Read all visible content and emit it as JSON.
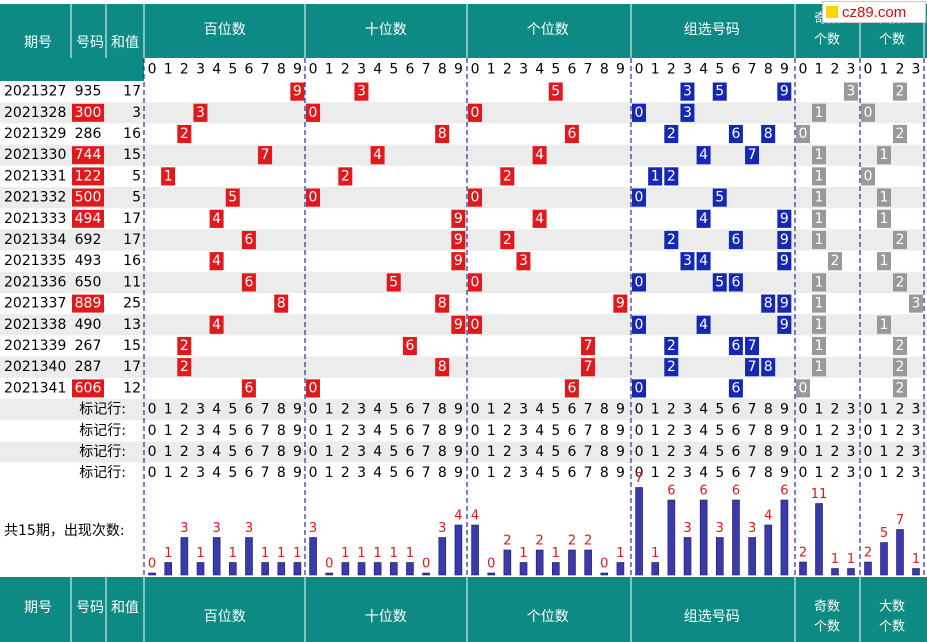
{
  "header": {
    "issue_label": "期号",
    "number_label": "号码",
    "sum_label": "和值",
    "sections": [
      "百位数",
      "十位数",
      "个位数",
      "组选号码",
      "奇数个数",
      "大数个数"
    ],
    "odd_label_line1": "奇数",
    "odd_label_line2": "个数",
    "big_label_line1": "大数",
    "big_label_line2": "个数"
  },
  "digits_0_9": [
    "0",
    "1",
    "2",
    "3",
    "4",
    "5",
    "6",
    "7",
    "8",
    "9"
  ],
  "digits_0_3": [
    "0",
    "1",
    "2",
    "3"
  ],
  "rows": [
    {
      "issue": "2021327",
      "number": "935",
      "sum": "17",
      "red_bg": false
    },
    {
      "issue": "2021328",
      "number": "300",
      "sum": "3",
      "red_bg": true
    },
    {
      "issue": "2021329",
      "number": "286",
      "sum": "16",
      "red_bg": false
    },
    {
      "issue": "2021330",
      "number": "744",
      "sum": "15",
      "red_bg": true
    },
    {
      "issue": "2021331",
      "number": "122",
      "sum": "5",
      "red_bg": true
    },
    {
      "issue": "2021332",
      "number": "500",
      "sum": "5",
      "red_bg": true
    },
    {
      "issue": "2021333",
      "number": "494",
      "sum": "17",
      "red_bg": true
    },
    {
      "issue": "2021334",
      "number": "692",
      "sum": "17",
      "red_bg": false
    },
    {
      "issue": "2021335",
      "number": "493",
      "sum": "16",
      "red_bg": false
    },
    {
      "issue": "2021336",
      "number": "650",
      "sum": "11",
      "red_bg": false
    },
    {
      "issue": "2021337",
      "number": "889",
      "sum": "25",
      "red_bg": true
    },
    {
      "issue": "2021338",
      "number": "490",
      "sum": "13",
      "red_bg": false
    },
    {
      "issue": "2021339",
      "number": "267",
      "sum": "15",
      "red_bg": false
    },
    {
      "issue": "2021340",
      "number": "287",
      "sum": "17",
      "red_bg": false
    },
    {
      "issue": "2021341",
      "number": "606",
      "sum": "12",
      "red_bg": true
    }
  ],
  "marker_rows": [
    {
      "label": "标记行:"
    },
    {
      "label": "标记行:"
    },
    {
      "label": "标记行:"
    },
    {
      "label": "标记行:"
    }
  ],
  "stats": {
    "label": "共15期，出现次数:"
  },
  "footer": {
    "issue_label": "期号",
    "number_label": "号码",
    "sum_label": "和值",
    "sections": [
      "百位数",
      "十位数",
      "个位数",
      "组选号码"
    ],
    "odd_label_line1": "奇数",
    "odd_label_line2": "个数",
    "big_label_line1": "大数",
    "big_label_line2": "个数"
  },
  "watermark": "cz89.com",
  "colors": {
    "teal": "#0e8a85",
    "red_cell": "#e0191c",
    "blue_cell": "#1428b4",
    "gray_cell": "#999999",
    "bar_fill": "#3a3aa8",
    "stripe": "#ececec",
    "divider": "#2a2aa0"
  },
  "chart_data": [
    {
      "type": "bar",
      "title": "百位数 出现次数",
      "categories": [
        "0",
        "1",
        "2",
        "3",
        "4",
        "5",
        "6",
        "7",
        "8",
        "9"
      ],
      "values": [
        0,
        1,
        3,
        1,
        3,
        1,
        3,
        1,
        1,
        1
      ],
      "row_digits": [
        9,
        3,
        2,
        7,
        1,
        5,
        4,
        6,
        4,
        6,
        8,
        4,
        2,
        2,
        6
      ]
    },
    {
      "type": "bar",
      "title": "十位数 出现次数",
      "categories": [
        "0",
        "1",
        "2",
        "3",
        "4",
        "5",
        "6",
        "7",
        "8",
        "9"
      ],
      "values": [
        3,
        0,
        1,
        1,
        1,
        1,
        1,
        0,
        3,
        4
      ],
      "row_digits": [
        3,
        0,
        8,
        4,
        2,
        0,
        9,
        9,
        9,
        5,
        8,
        9,
        6,
        8,
        0
      ]
    },
    {
      "type": "bar",
      "title": "个位数 出现次数",
      "categories": [
        "0",
        "1",
        "2",
        "3",
        "4",
        "5",
        "6",
        "7",
        "8",
        "9"
      ],
      "values": [
        4,
        0,
        2,
        1,
        2,
        1,
        2,
        2,
        0,
        1
      ],
      "row_digits": [
        5,
        0,
        6,
        4,
        2,
        0,
        4,
        2,
        3,
        0,
        9,
        0,
        7,
        7,
        6
      ]
    },
    {
      "type": "bar",
      "title": "组选号码 出现次数",
      "categories": [
        "0",
        "1",
        "2",
        "3",
        "4",
        "5",
        "6",
        "7",
        "8",
        "9"
      ],
      "values": [
        7,
        1,
        6,
        3,
        6,
        3,
        6,
        3,
        4,
        6
      ],
      "row_digits": [
        [
          3,
          5,
          9
        ],
        [
          0,
          3
        ],
        [
          2,
          6,
          8
        ],
        [
          4,
          7
        ],
        [
          1,
          2
        ],
        [
          0,
          5
        ],
        [
          4,
          9
        ],
        [
          2,
          6,
          9
        ],
        [
          3,
          4,
          9
        ],
        [
          0,
          5,
          6
        ],
        [
          8,
          9
        ],
        [
          0,
          4,
          9
        ],
        [
          2,
          6,
          7
        ],
        [
          2,
          7,
          8
        ],
        [
          0,
          6
        ]
      ]
    },
    {
      "type": "bar",
      "title": "奇数个数 出现次数",
      "categories": [
        "0",
        "1",
        "2",
        "3"
      ],
      "values": [
        2,
        11,
        1,
        1
      ],
      "row_values": [
        3,
        1,
        0,
        1,
        1,
        1,
        1,
        1,
        2,
        1,
        1,
        1,
        1,
        1,
        0
      ]
    },
    {
      "type": "bar",
      "title": "大数个数 出现次数",
      "categories": [
        "0",
        "1",
        "2",
        "3"
      ],
      "values": [
        2,
        5,
        7,
        1
      ],
      "row_values": [
        2,
        0,
        2,
        1,
        0,
        1,
        1,
        2,
        1,
        2,
        3,
        1,
        2,
        2,
        2
      ]
    }
  ]
}
